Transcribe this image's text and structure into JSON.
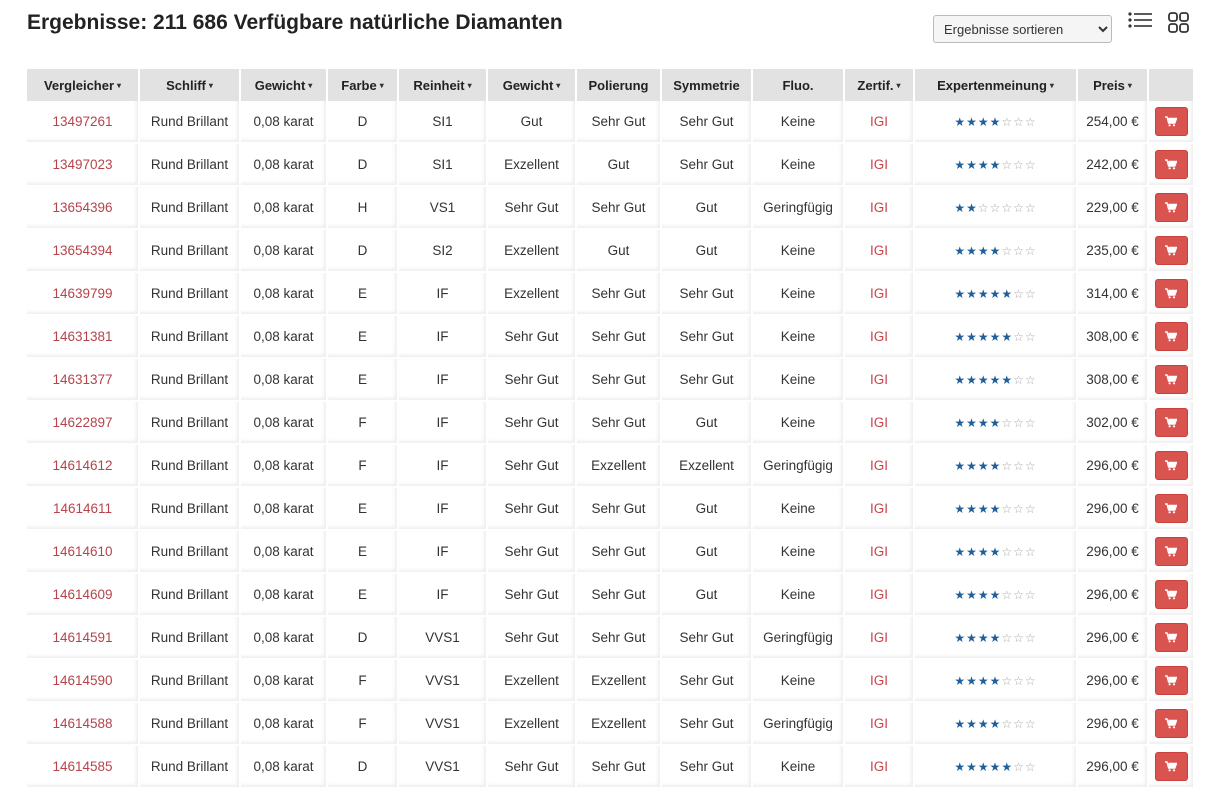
{
  "header": {
    "title": "Ergebnisse: 211 686 Verfügbare natürliche Diamanten",
    "sort_label": "Ergebnisse sortieren",
    "list_view_icon": "list-view-icon",
    "grid_view_icon": "grid-view-icon"
  },
  "table": {
    "columns": [
      {
        "label": "Vergleicher",
        "sortable": true
      },
      {
        "label": "Schliff",
        "sortable": true
      },
      {
        "label": "Gewicht",
        "sortable": true
      },
      {
        "label": "Farbe",
        "sortable": true
      },
      {
        "label": "Reinheit",
        "sortable": true
      },
      {
        "label": "Gewicht",
        "sortable": true
      },
      {
        "label": "Polierung",
        "sortable": false
      },
      {
        "label": "Symmetrie",
        "sortable": false
      },
      {
        "label": "Fluo.",
        "sortable": false
      },
      {
        "label": "Zertif.",
        "sortable": true
      },
      {
        "label": "Expertenmeinung",
        "sortable": true
      },
      {
        "label": "Preis",
        "sortable": true
      },
      {
        "label": "",
        "sortable": false
      }
    ],
    "colors": {
      "link": "#b5444c",
      "star": "#1f5f9c",
      "cart": "#d9534f"
    },
    "cart_icon": "shopping-cart-icon",
    "rows": [
      {
        "id": "13497261",
        "cut": "Rund Brillant",
        "weight": "0,08 karat",
        "color": "D",
        "clarity": "SI1",
        "grade": "Gut",
        "polish": "Sehr Gut",
        "symmetry": "Sehr Gut",
        "fluo": "Keine",
        "cert": "IGI",
        "rating": 4,
        "rating_max": 7,
        "price": "254,00 €"
      },
      {
        "id": "13497023",
        "cut": "Rund Brillant",
        "weight": "0,08 karat",
        "color": "D",
        "clarity": "SI1",
        "grade": "Exzellent",
        "polish": "Gut",
        "symmetry": "Sehr Gut",
        "fluo": "Keine",
        "cert": "IGI",
        "rating": 4,
        "rating_max": 7,
        "price": "242,00 €"
      },
      {
        "id": "13654396",
        "cut": "Rund Brillant",
        "weight": "0,08 karat",
        "color": "H",
        "clarity": "VS1",
        "grade": "Sehr Gut",
        "polish": "Sehr Gut",
        "symmetry": "Gut",
        "fluo": "Geringfügig",
        "cert": "IGI",
        "rating": 2,
        "rating_max": 7,
        "price": "229,00 €"
      },
      {
        "id": "13654394",
        "cut": "Rund Brillant",
        "weight": "0,08 karat",
        "color": "D",
        "clarity": "SI2",
        "grade": "Exzellent",
        "polish": "Gut",
        "symmetry": "Gut",
        "fluo": "Keine",
        "cert": "IGI",
        "rating": 4,
        "rating_max": 7,
        "price": "235,00 €"
      },
      {
        "id": "14639799",
        "cut": "Rund Brillant",
        "weight": "0,08 karat",
        "color": "E",
        "clarity": "IF",
        "grade": "Exzellent",
        "polish": "Sehr Gut",
        "symmetry": "Sehr Gut",
        "fluo": "Keine",
        "cert": "IGI",
        "rating": 5,
        "rating_max": 7,
        "price": "314,00 €"
      },
      {
        "id": "14631381",
        "cut": "Rund Brillant",
        "weight": "0,08 karat",
        "color": "E",
        "clarity": "IF",
        "grade": "Sehr Gut",
        "polish": "Sehr Gut",
        "symmetry": "Sehr Gut",
        "fluo": "Keine",
        "cert": "IGI",
        "rating": 5,
        "rating_max": 7,
        "price": "308,00 €"
      },
      {
        "id": "14631377",
        "cut": "Rund Brillant",
        "weight": "0,08 karat",
        "color": "E",
        "clarity": "IF",
        "grade": "Sehr Gut",
        "polish": "Sehr Gut",
        "symmetry": "Sehr Gut",
        "fluo": "Keine",
        "cert": "IGI",
        "rating": 5,
        "rating_max": 7,
        "price": "308,00 €"
      },
      {
        "id": "14622897",
        "cut": "Rund Brillant",
        "weight": "0,08 karat",
        "color": "F",
        "clarity": "IF",
        "grade": "Sehr Gut",
        "polish": "Sehr Gut",
        "symmetry": "Gut",
        "fluo": "Keine",
        "cert": "IGI",
        "rating": 4,
        "rating_max": 7,
        "price": "302,00 €"
      },
      {
        "id": "14614612",
        "cut": "Rund Brillant",
        "weight": "0,08 karat",
        "color": "F",
        "clarity": "IF",
        "grade": "Sehr Gut",
        "polish": "Exzellent",
        "symmetry": "Exzellent",
        "fluo": "Geringfügig",
        "cert": "IGI",
        "rating": 4,
        "rating_max": 7,
        "price": "296,00 €"
      },
      {
        "id": "14614611",
        "cut": "Rund Brillant",
        "weight": "0,08 karat",
        "color": "E",
        "clarity": "IF",
        "grade": "Sehr Gut",
        "polish": "Sehr Gut",
        "symmetry": "Gut",
        "fluo": "Keine",
        "cert": "IGI",
        "rating": 4,
        "rating_max": 7,
        "price": "296,00 €"
      },
      {
        "id": "14614610",
        "cut": "Rund Brillant",
        "weight": "0,08 karat",
        "color": "E",
        "clarity": "IF",
        "grade": "Sehr Gut",
        "polish": "Sehr Gut",
        "symmetry": "Gut",
        "fluo": "Keine",
        "cert": "IGI",
        "rating": 4,
        "rating_max": 7,
        "price": "296,00 €"
      },
      {
        "id": "14614609",
        "cut": "Rund Brillant",
        "weight": "0,08 karat",
        "color": "E",
        "clarity": "IF",
        "grade": "Sehr Gut",
        "polish": "Sehr Gut",
        "symmetry": "Gut",
        "fluo": "Keine",
        "cert": "IGI",
        "rating": 4,
        "rating_max": 7,
        "price": "296,00 €"
      },
      {
        "id": "14614591",
        "cut": "Rund Brillant",
        "weight": "0,08 karat",
        "color": "D",
        "clarity": "VVS1",
        "grade": "Sehr Gut",
        "polish": "Sehr Gut",
        "symmetry": "Sehr Gut",
        "fluo": "Geringfügig",
        "cert": "IGI",
        "rating": 4,
        "rating_max": 7,
        "price": "296,00 €"
      },
      {
        "id": "14614590",
        "cut": "Rund Brillant",
        "weight": "0,08 karat",
        "color": "F",
        "clarity": "VVS1",
        "grade": "Exzellent",
        "polish": "Exzellent",
        "symmetry": "Sehr Gut",
        "fluo": "Keine",
        "cert": "IGI",
        "rating": 4,
        "rating_max": 7,
        "price": "296,00 €"
      },
      {
        "id": "14614588",
        "cut": "Rund Brillant",
        "weight": "0,08 karat",
        "color": "F",
        "clarity": "VVS1",
        "grade": "Exzellent",
        "polish": "Exzellent",
        "symmetry": "Sehr Gut",
        "fluo": "Geringfügig",
        "cert": "IGI",
        "rating": 4,
        "rating_max": 7,
        "price": "296,00 €"
      },
      {
        "id": "14614585",
        "cut": "Rund Brillant",
        "weight": "0,08 karat",
        "color": "D",
        "clarity": "VVS1",
        "grade": "Sehr Gut",
        "polish": "Sehr Gut",
        "symmetry": "Sehr Gut",
        "fluo": "Keine",
        "cert": "IGI",
        "rating": 5,
        "rating_max": 7,
        "price": "296,00 €"
      }
    ]
  }
}
